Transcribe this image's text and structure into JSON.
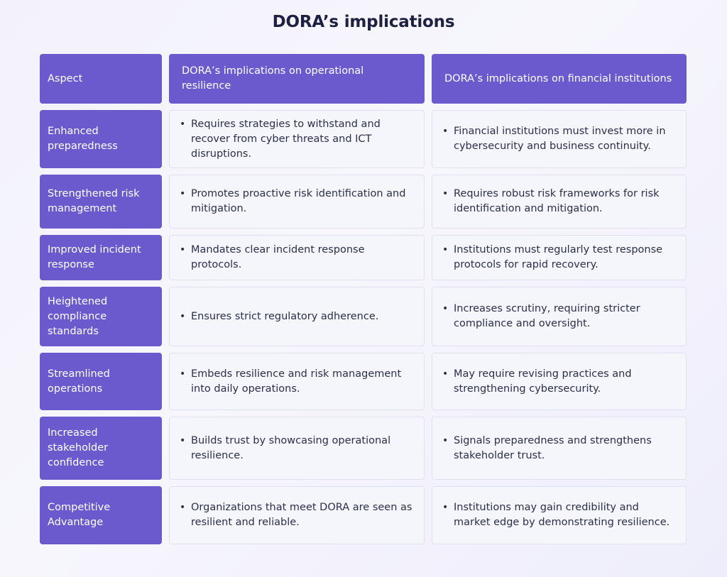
{
  "title": "DORA’s implications",
  "table": {
    "headers": [
      "Aspect",
      "DORA’s implications on operational resilience",
      "DORA’s implications on financial institutions"
    ],
    "rows": [
      {
        "aspect": "Enhanced preparedness",
        "operational": "Requires strategies to withstand and recover from cyber threats and ICT disruptions.",
        "financial": "Financial institutions must invest more in cybersecurity and business continuity."
      },
      {
        "aspect": "Strengthened risk management",
        "operational": "Promotes proactive risk identification and mitigation.",
        "financial": "Requires robust risk frameworks for risk identification and mitigation."
      },
      {
        "aspect": "Improved incident response",
        "operational": "Mandates clear incident response protocols.",
        "financial": "Institutions must regularly test response protocols for rapid recovery."
      },
      {
        "aspect": "Heightened compliance standards",
        "operational": "Ensures strict regulatory adherence.",
        "financial": "Increases scrutiny, requiring stricter compliance and oversight."
      },
      {
        "aspect": "Streamlined operations",
        "operational": "Embeds resilience and risk management into daily operations.",
        "financial": "May require revising practices and strengthening cybersecurity."
      },
      {
        "aspect": "Increased stakeholder confidence",
        "operational": "Builds trust by showcasing operational resilience.",
        "financial": "Signals preparedness and strengthens stakeholder trust."
      },
      {
        "aspect": "Competitive Advantage",
        "operational": "Organizations that meet DORA are seen as resilient and reliable.",
        "financial": "Institutions may gain credibility and market edge by demonstrating resilience."
      }
    ]
  }
}
